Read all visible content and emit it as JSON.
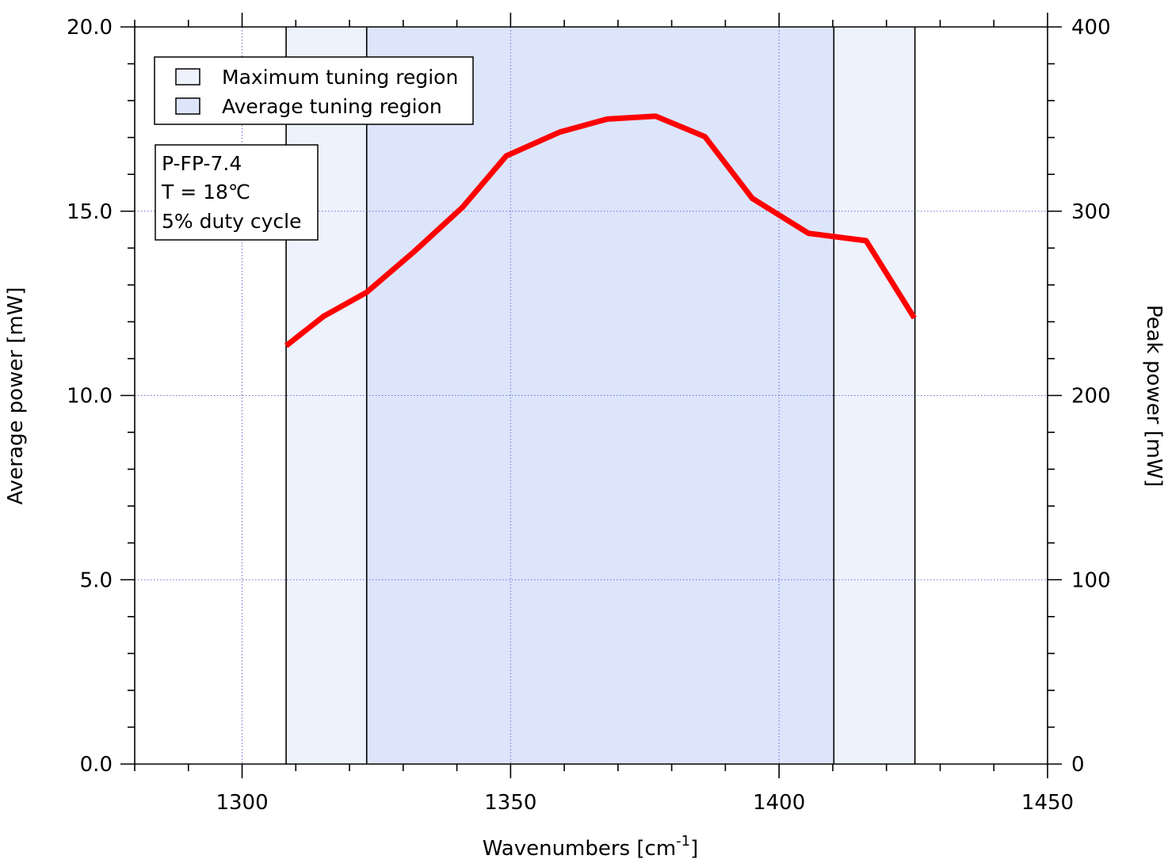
{
  "chart_data": {
    "type": "line",
    "xlabel": "Wavenumbers [cm",
    "xlabel_sup": "-1",
    "xlabel_suffix": "]",
    "ylabel_left": "Average power [mW]",
    "ylabel_right": "Peak power [mW]",
    "xlim": [
      1280,
      1450
    ],
    "ylim_left": [
      0,
      20
    ],
    "ylim_right": [
      0,
      400
    ],
    "x_ticks": [
      1300,
      1350,
      1400,
      1450
    ],
    "x_tick_labels": [
      "1300",
      "1350",
      "1400",
      "1450"
    ],
    "y_left_ticks": [
      0,
      5,
      10,
      15,
      20
    ],
    "y_left_tick_labels": [
      "0.0",
      "5.0",
      "10.0",
      "15.0",
      "20.0"
    ],
    "y_right_ticks": [
      0,
      100,
      200,
      300,
      400
    ],
    "y_right_tick_labels": [
      "0",
      "100",
      "200",
      "300",
      "400"
    ],
    "grid": true,
    "legend_position": "top-left",
    "legend": [
      {
        "label": "Maximum tuning region",
        "color": "#eef2fd"
      },
      {
        "label": "Average tuning region",
        "color": "#dde5fb"
      }
    ],
    "regions": [
      {
        "name": "Maximum tuning region",
        "x_start": 1308.2,
        "x_end": 1425.3,
        "color": "#eef2fd"
      },
      {
        "name": "Average tuning region",
        "x_start": 1323.2,
        "x_end": 1410.2,
        "color": "#dde5fb"
      }
    ],
    "annotation_lines": [
      "P-FP-7.4",
      "T = 18℃",
      "5% duty cycle"
    ],
    "series": [
      {
        "color": "#ff0000",
        "x": [
          1308.2,
          1315.2,
          1323.2,
          1332.0,
          1341.0,
          1349.2,
          1359.2,
          1368.0,
          1377.0,
          1386.2,
          1395.0,
          1405.5,
          1416.2,
          1425.2
        ],
        "y": [
          11.35,
          12.15,
          12.8,
          13.9,
          15.1,
          16.5,
          17.15,
          17.5,
          17.58,
          17.02,
          15.35,
          14.4,
          14.2,
          12.1
        ]
      }
    ]
  }
}
